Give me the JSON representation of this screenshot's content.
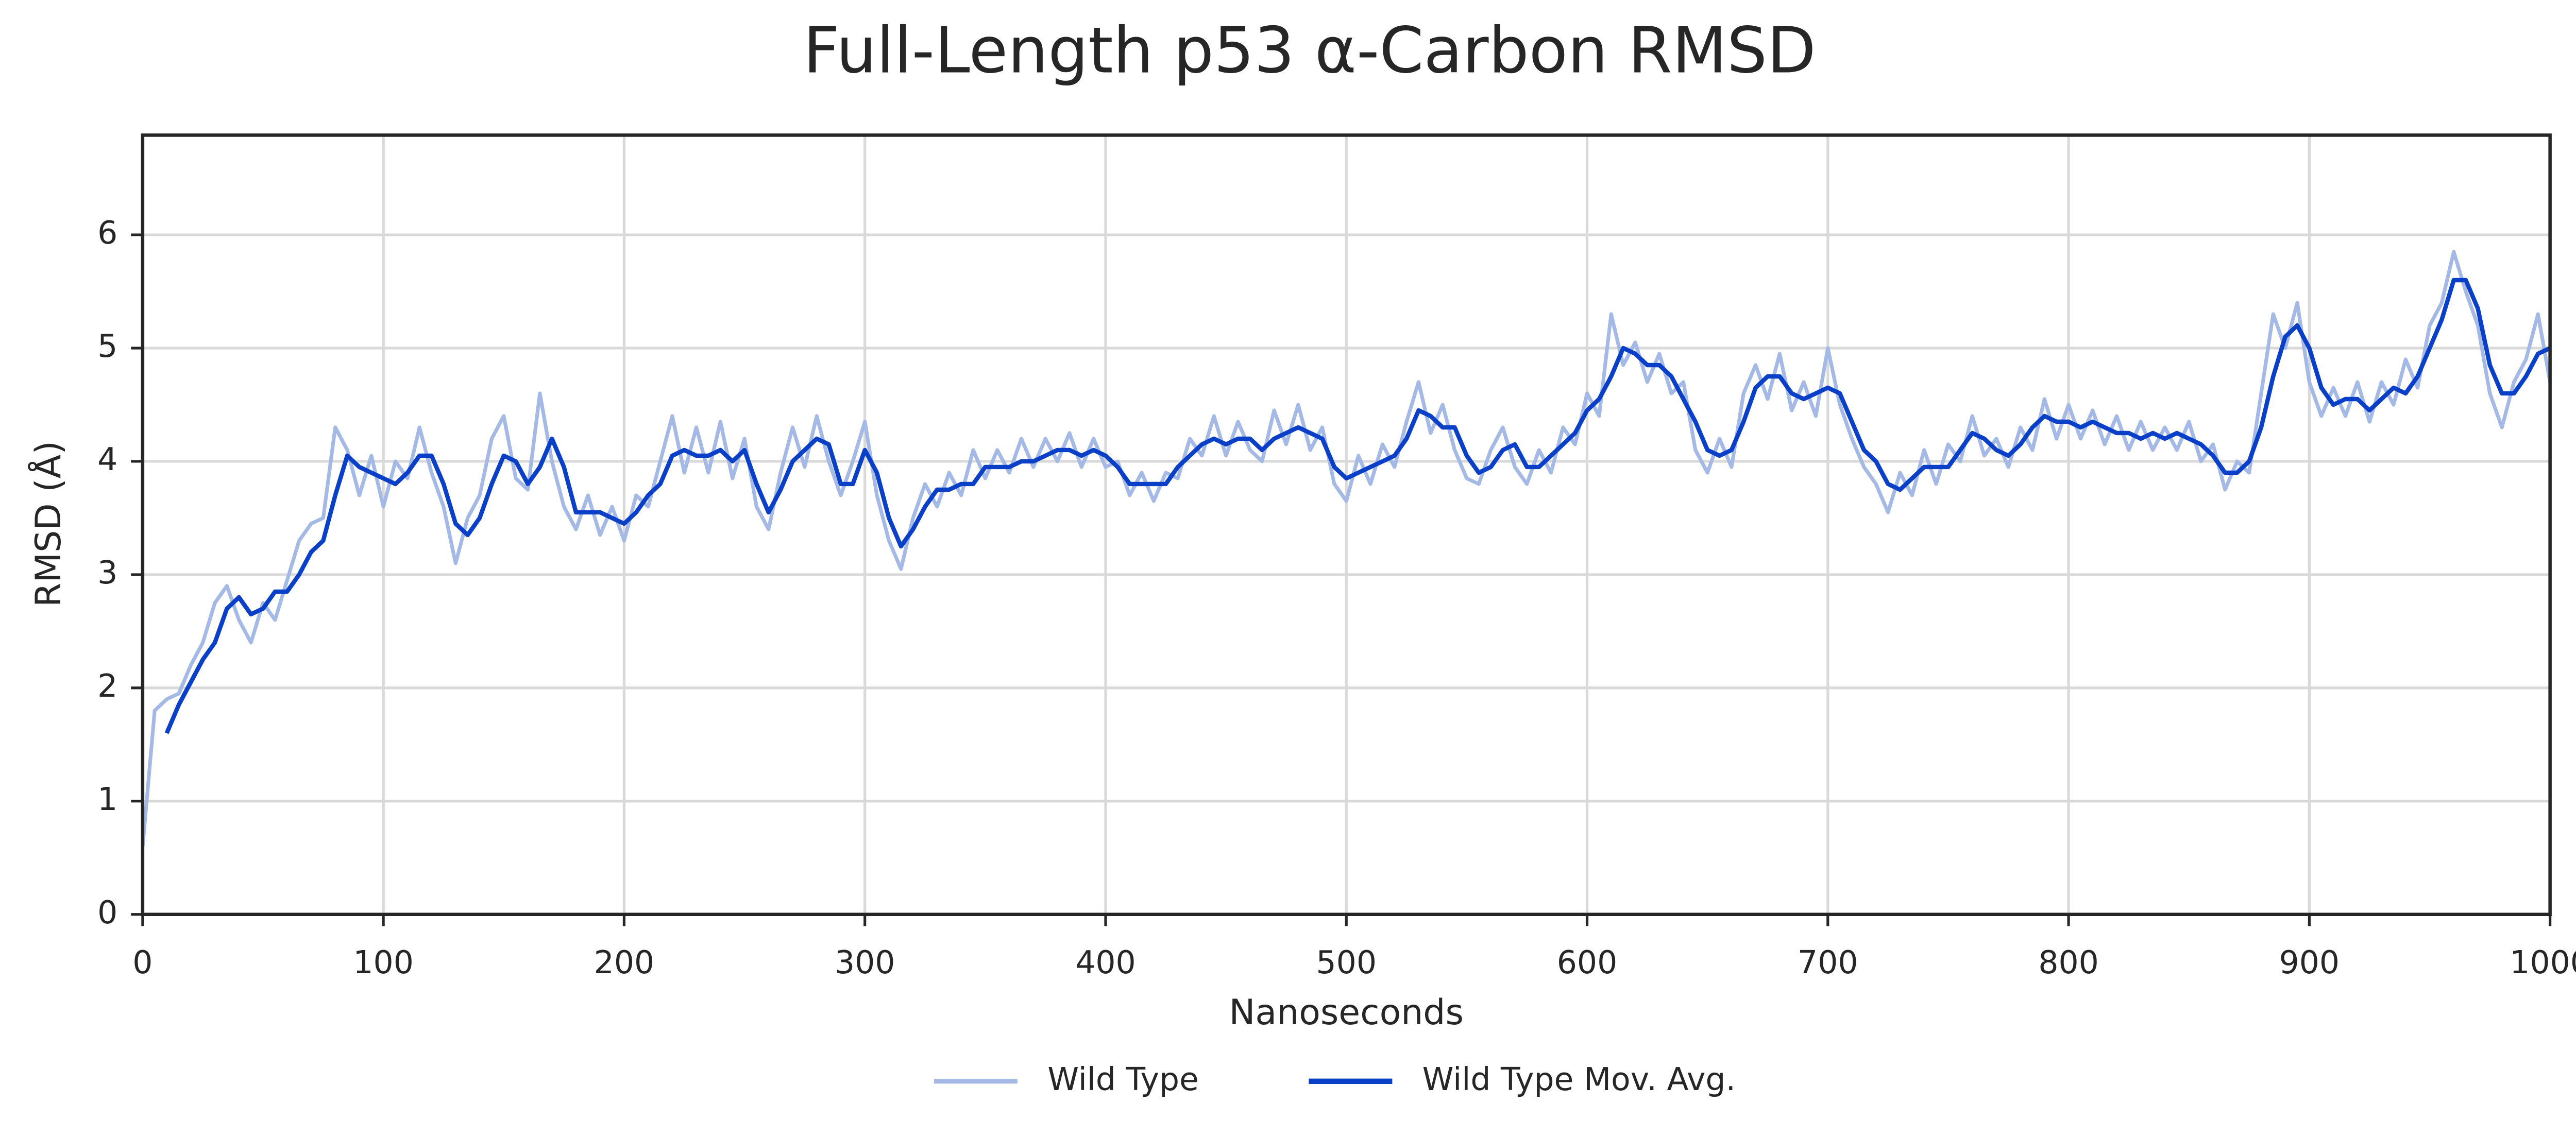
{
  "chart_data": {
    "type": "line",
    "title": "Full-Length p53 α-Carbon RMSD",
    "xlabel": "Nanoseconds",
    "ylabel": "RMSD (Å)",
    "xlim": [
      0,
      1000
    ],
    "ylim": [
      0,
      6.88
    ],
    "xticks": [
      0,
      100,
      200,
      300,
      400,
      500,
      600,
      700,
      800,
      900,
      1000
    ],
    "yticks": [
      0,
      1,
      2,
      3,
      4,
      5,
      6
    ],
    "grid": true,
    "legend": "bottom",
    "x": [
      0,
      5,
      10,
      15,
      20,
      25,
      30,
      35,
      40,
      45,
      50,
      55,
      60,
      65,
      70,
      75,
      80,
      85,
      90,
      95,
      100,
      105,
      110,
      115,
      120,
      125,
      130,
      135,
      140,
      145,
      150,
      155,
      160,
      165,
      170,
      175,
      180,
      185,
      190,
      195,
      200,
      205,
      210,
      215,
      220,
      225,
      230,
      235,
      240,
      245,
      250,
      255,
      260,
      265,
      270,
      275,
      280,
      285,
      290,
      295,
      300,
      305,
      310,
      315,
      320,
      325,
      330,
      335,
      340,
      345,
      350,
      355,
      360,
      365,
      370,
      375,
      380,
      385,
      390,
      395,
      400,
      405,
      410,
      415,
      420,
      425,
      430,
      435,
      440,
      445,
      450,
      455,
      460,
      465,
      470,
      475,
      480,
      485,
      490,
      495,
      500,
      505,
      510,
      515,
      520,
      525,
      530,
      535,
      540,
      545,
      550,
      555,
      560,
      565,
      570,
      575,
      580,
      585,
      590,
      595,
      600,
      605,
      610,
      615,
      620,
      625,
      630,
      635,
      640,
      645,
      650,
      655,
      660,
      665,
      670,
      675,
      680,
      685,
      690,
      695,
      700,
      705,
      710,
      715,
      720,
      725,
      730,
      735,
      740,
      745,
      750,
      755,
      760,
      765,
      770,
      775,
      780,
      785,
      790,
      795,
      800,
      805,
      810,
      815,
      820,
      825,
      830,
      835,
      840,
      845,
      850,
      855,
      860,
      865,
      870,
      875,
      880,
      885,
      890,
      895,
      900,
      905,
      910,
      915,
      920,
      925,
      930,
      935,
      940,
      945,
      950,
      955,
      960,
      965,
      970,
      975,
      980,
      985,
      990,
      995,
      1000
    ],
    "series": [
      {
        "name": "Wild Type",
        "color": "#a4b9e6",
        "width": 2.2,
        "values": [
          0.6,
          1.8,
          1.9,
          1.95,
          2.2,
          2.4,
          2.75,
          2.9,
          2.6,
          2.4,
          2.75,
          2.6,
          2.95,
          3.3,
          3.45,
          3.5,
          4.3,
          4.1,
          3.7,
          4.05,
          3.6,
          4.0,
          3.85,
          4.3,
          3.9,
          3.6,
          3.1,
          3.5,
          3.7,
          4.2,
          4.4,
          3.85,
          3.75,
          4.6,
          4.0,
          3.6,
          3.4,
          3.7,
          3.35,
          3.6,
          3.3,
          3.7,
          3.6,
          4.0,
          4.4,
          3.9,
          4.3,
          3.9,
          4.35,
          3.85,
          4.2,
          3.6,
          3.4,
          3.9,
          4.3,
          3.95,
          4.4,
          4.0,
          3.7,
          4.0,
          4.35,
          3.7,
          3.3,
          3.05,
          3.5,
          3.8,
          3.6,
          3.9,
          3.7,
          4.1,
          3.85,
          4.1,
          3.9,
          4.2,
          3.95,
          4.2,
          4.0,
          4.25,
          3.95,
          4.2,
          3.95,
          4.0,
          3.7,
          3.9,
          3.65,
          3.9,
          3.85,
          4.2,
          4.05,
          4.4,
          4.05,
          4.35,
          4.1,
          4.0,
          4.45,
          4.15,
          4.5,
          4.1,
          4.3,
          3.8,
          3.65,
          4.05,
          3.8,
          4.15,
          3.95,
          4.35,
          4.7,
          4.25,
          4.5,
          4.1,
          3.85,
          3.8,
          4.1,
          4.3,
          3.95,
          3.8,
          4.1,
          3.9,
          4.3,
          4.15,
          4.6,
          4.4,
          5.3,
          4.85,
          5.05,
          4.7,
          4.95,
          4.6,
          4.7,
          4.1,
          3.9,
          4.2,
          3.95,
          4.6,
          4.85,
          4.55,
          4.95,
          4.45,
          4.7,
          4.4,
          5.0,
          4.5,
          4.2,
          3.95,
          3.8,
          3.55,
          3.9,
          3.7,
          4.1,
          3.8,
          4.15,
          4.0,
          4.4,
          4.05,
          4.2,
          3.95,
          4.3,
          4.1,
          4.55,
          4.2,
          4.5,
          4.2,
          4.45,
          4.15,
          4.4,
          4.1,
          4.35,
          4.1,
          4.3,
          4.1,
          4.35,
          4.0,
          4.15,
          3.75,
          4.0,
          3.9,
          4.6,
          5.3,
          5.0,
          5.4,
          4.7,
          4.4,
          4.65,
          4.4,
          4.7,
          4.35,
          4.7,
          4.5,
          4.9,
          4.65,
          5.2,
          5.4,
          5.85,
          5.5,
          5.2,
          4.6,
          4.3,
          4.7,
          4.9,
          5.3,
          4.7
        ]
      },
      {
        "name": "Wild Type Mov. Avg.",
        "color": "#0a3fc8",
        "width": 2.6,
        "values": [
          null,
          null,
          1.6,
          1.85,
          2.05,
          2.25,
          2.4,
          2.7,
          2.8,
          2.65,
          2.7,
          2.85,
          2.85,
          3.0,
          3.2,
          3.3,
          3.7,
          4.05,
          3.95,
          3.9,
          3.85,
          3.8,
          3.9,
          4.05,
          4.05,
          3.8,
          3.45,
          3.35,
          3.5,
          3.8,
          4.05,
          4.0,
          3.8,
          3.95,
          4.2,
          3.95,
          3.55,
          3.55,
          3.55,
          3.5,
          3.45,
          3.55,
          3.7,
          3.8,
          4.05,
          4.1,
          4.05,
          4.05,
          4.1,
          4.0,
          4.1,
          3.8,
          3.55,
          3.75,
          4.0,
          4.1,
          4.2,
          4.15,
          3.8,
          3.8,
          4.1,
          3.9,
          3.5,
          3.25,
          3.4,
          3.6,
          3.75,
          3.75,
          3.8,
          3.8,
          3.95,
          3.95,
          3.95,
          4.0,
          4.0,
          4.05,
          4.1,
          4.1,
          4.05,
          4.1,
          4.05,
          3.95,
          3.8,
          3.8,
          3.8,
          3.8,
          3.95,
          4.05,
          4.15,
          4.2,
          4.15,
          4.2,
          4.2,
          4.1,
          4.2,
          4.25,
          4.3,
          4.25,
          4.2,
          3.95,
          3.85,
          3.9,
          3.95,
          4.0,
          4.05,
          4.2,
          4.45,
          4.4,
          4.3,
          4.3,
          4.05,
          3.9,
          3.95,
          4.1,
          4.15,
          3.95,
          3.95,
          4.05,
          4.15,
          4.25,
          4.45,
          4.55,
          4.75,
          5.0,
          4.95,
          4.85,
          4.85,
          4.75,
          4.55,
          4.35,
          4.1,
          4.05,
          4.1,
          4.35,
          4.65,
          4.75,
          4.75,
          4.6,
          4.55,
          4.6,
          4.65,
          4.6,
          4.35,
          4.1,
          4.0,
          3.8,
          3.75,
          3.85,
          3.95,
          3.95,
          3.95,
          4.1,
          4.25,
          4.2,
          4.1,
          4.05,
          4.15,
          4.3,
          4.4,
          4.35,
          4.35,
          4.3,
          4.35,
          4.3,
          4.25,
          4.25,
          4.2,
          4.25,
          4.2,
          4.25,
          4.2,
          4.15,
          4.05,
          3.9,
          3.9,
          4.0,
          4.3,
          4.75,
          5.1,
          5.2,
          5.0,
          4.65,
          4.5,
          4.55,
          4.55,
          4.45,
          4.55,
          4.65,
          4.6,
          4.75,
          5.0,
          5.25,
          5.6,
          5.6,
          5.35,
          4.85,
          4.6,
          4.6,
          4.75,
          4.95,
          5.0
        ]
      }
    ]
  }
}
